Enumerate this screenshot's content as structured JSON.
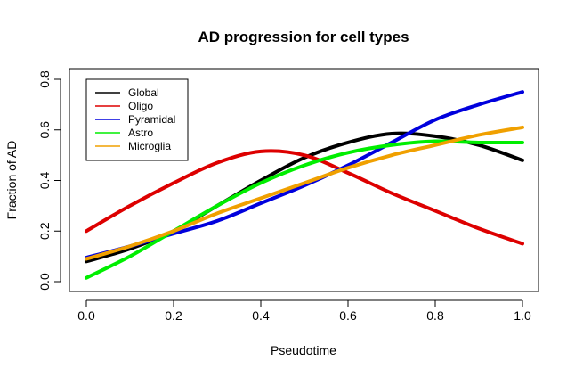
{
  "chart_data": {
    "type": "line",
    "title": "AD progression for cell types",
    "xlabel": "Pseudotime",
    "ylabel": "Fraction of AD",
    "xlim": [
      0.0,
      1.0
    ],
    "ylim": [
      0.0,
      0.8
    ],
    "xticks": [
      "0.0",
      "0.2",
      "0.4",
      "0.6",
      "0.8",
      "1.0"
    ],
    "yticks": [
      "0.0",
      "0.2",
      "0.4",
      "0.6",
      "0.8"
    ],
    "grid": false,
    "legend_position": "top-left",
    "x": [
      0.0,
      0.1,
      0.2,
      0.3,
      0.4,
      0.5,
      0.6,
      0.7,
      0.8,
      0.9,
      1.0
    ],
    "series": [
      {
        "name": "Global",
        "color": "#000000",
        "values": [
          0.08,
          0.13,
          0.2,
          0.3,
          0.4,
          0.49,
          0.55,
          0.585,
          0.575,
          0.54,
          0.48
        ]
      },
      {
        "name": "Oligo",
        "color": "#dd0000",
        "values": [
          0.2,
          0.3,
          0.39,
          0.47,
          0.515,
          0.5,
          0.43,
          0.35,
          0.28,
          0.21,
          0.15
        ]
      },
      {
        "name": "Pyramidal",
        "color": "#0000dd",
        "values": [
          0.095,
          0.14,
          0.19,
          0.24,
          0.31,
          0.38,
          0.46,
          0.55,
          0.64,
          0.7,
          0.75
        ]
      },
      {
        "name": "Astro",
        "color": "#00ee00",
        "values": [
          0.015,
          0.1,
          0.2,
          0.3,
          0.39,
          0.46,
          0.51,
          0.54,
          0.555,
          0.55,
          0.55
        ]
      },
      {
        "name": "Microglia",
        "color": "#f0a000",
        "values": [
          0.09,
          0.14,
          0.2,
          0.27,
          0.33,
          0.39,
          0.45,
          0.5,
          0.54,
          0.58,
          0.61
        ]
      }
    ]
  }
}
